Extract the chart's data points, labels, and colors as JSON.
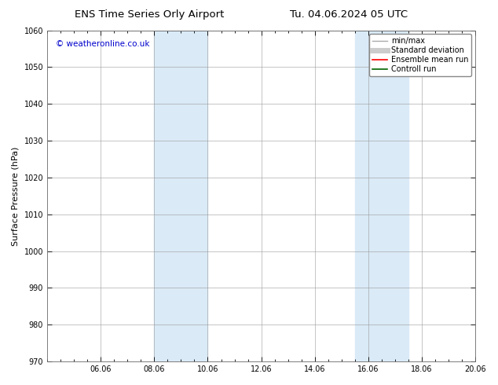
{
  "title_left": "ENS Time Series Orly Airport",
  "title_right": "Tu. 04.06.2024 05 UTC",
  "ylabel": "Surface Pressure (hPa)",
  "ylim": [
    970,
    1060
  ],
  "yticks": [
    970,
    980,
    990,
    1000,
    1010,
    1020,
    1030,
    1040,
    1050,
    1060
  ],
  "xlim_start": 0.0,
  "xlim_end": 16.0,
  "xtick_positions": [
    2,
    4,
    6,
    8,
    10,
    12,
    14,
    16
  ],
  "xtick_labels": [
    "06.06",
    "08.06",
    "10.06",
    "12.06",
    "14.06",
    "16.06",
    "18.06",
    "20.06"
  ],
  "shaded_bands": [
    {
      "x_start": 4.0,
      "x_end": 6.0
    },
    {
      "x_start": 11.5,
      "x_end": 13.5
    }
  ],
  "shade_color": "#daeaf7",
  "watermark_text": "© weatheronline.co.uk",
  "watermark_color": "#0000cc",
  "legend_entries": [
    {
      "label": "min/max",
      "color": "#aaaaaa",
      "lw": 1.0,
      "ls": "-"
    },
    {
      "label": "Standard deviation",
      "color": "#cccccc",
      "lw": 5,
      "ls": "-"
    },
    {
      "label": "Ensemble mean run",
      "color": "#ff0000",
      "lw": 1.2,
      "ls": "-"
    },
    {
      "label": "Controll run",
      "color": "#006400",
      "lw": 1.2,
      "ls": "-"
    }
  ],
  "bg_color": "#ffffff",
  "grid_color": "#999999",
  "title_fontsize": 9.5,
  "tick_fontsize": 7,
  "ylabel_fontsize": 8,
  "watermark_fontsize": 7.5,
  "legend_fontsize": 7
}
